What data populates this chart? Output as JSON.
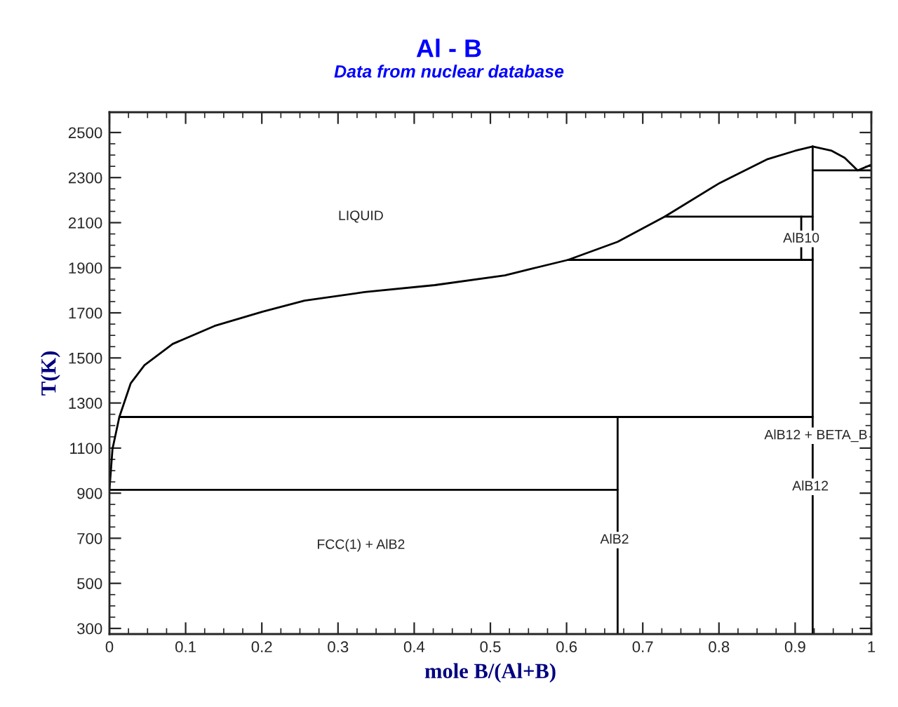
{
  "chart_data": {
    "type": "line",
    "title": "Al - B",
    "subtitle": "Data from nuclear database",
    "xlabel": "mole B/(Al+B)",
    "ylabel": "T(K)",
    "xlim": [
      0,
      1
    ],
    "ylim": [
      275,
      2590
    ],
    "xticks": [
      0,
      0.1,
      0.2,
      0.3,
      0.4,
      0.5,
      0.6,
      0.7,
      0.8,
      0.9,
      1
    ],
    "yticks": [
      300,
      500,
      700,
      900,
      1100,
      1300,
      1500,
      1700,
      1900,
      2100,
      2300,
      2500
    ],
    "grid": false,
    "legend": false,
    "marker": "none",
    "line_style": "solid",
    "series": [
      {
        "color": "#000000",
        "x": [
          0,
          0.004,
          0.013,
          0.028,
          0.046,
          0.083,
          0.138,
          0.201,
          0.256,
          0.335,
          0.427,
          0.519,
          0.556,
          0.602,
          0.667,
          0.729,
          0.801,
          0.864,
          0.9,
          0.923
        ],
        "values": [
          915,
          1096,
          1238,
          1388,
          1468,
          1562,
          1642,
          1705,
          1754,
          1792,
          1823,
          1866,
          1897,
          1935,
          2015,
          2127,
          2276,
          2382,
          2419,
          2438
        ]
      },
      {
        "color": "#000000",
        "x": [
          0.923,
          0.948,
          0.965,
          0.982,
          1
        ],
        "values": [
          2438,
          2419,
          2388,
          2332,
          2357
        ]
      },
      {
        "color": "#000000",
        "x": [
          0,
          0.667
        ],
        "values": [
          915,
          915
        ]
      },
      {
        "color": "#000000",
        "x": [
          0.013,
          0.923
        ],
        "values": [
          1238,
          1238
        ]
      },
      {
        "color": "#000000",
        "x": [
          0.667,
          0.667
        ],
        "values": [
          275,
          1238
        ]
      },
      {
        "color": "#000000",
        "x": [
          0.923,
          0.923
        ],
        "values": [
          275,
          2438
        ]
      },
      {
        "color": "#000000",
        "x": [
          0.729,
          0.923
        ],
        "values": [
          2127,
          2127
        ]
      },
      {
        "color": "#000000",
        "x": [
          0.602,
          0.923
        ],
        "values": [
          1935,
          1935
        ]
      },
      {
        "color": "#000000",
        "x": [
          0.908,
          0.908
        ],
        "values": [
          1935,
          2127
        ]
      },
      {
        "color": "#000000",
        "x": [
          0.923,
          1
        ],
        "values": [
          2332,
          2332
        ]
      }
    ],
    "annotations": [
      "LIQUID",
      {
        "text": "AlB10",
        "x": 0.908,
        "y": 2028
      },
      "AlB12 + BETA_B",
      {
        "text": "AlB12",
        "x": 0.92,
        "y": 928
      },
      {
        "text": "AlB2",
        "x": 0.663,
        "y": 692
      },
      "FCC(1) + AlB2"
    ]
  }
}
